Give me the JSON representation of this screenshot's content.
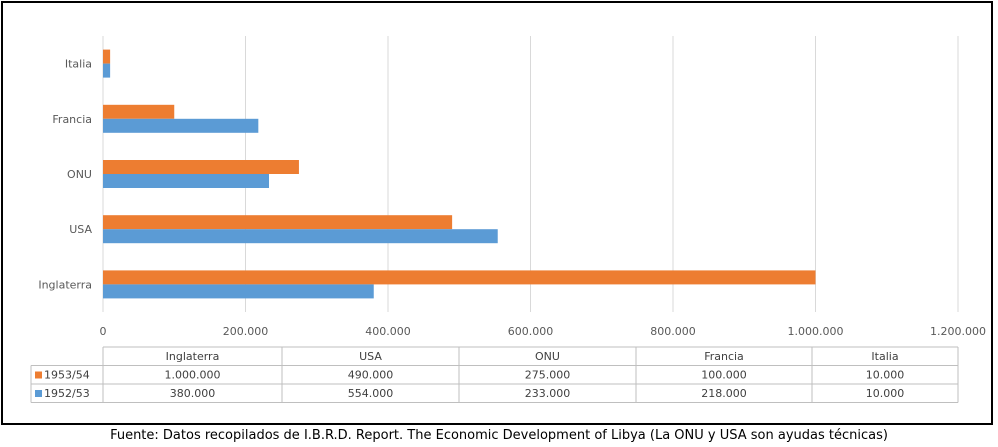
{
  "chart_data": {
    "type": "bar",
    "orientation": "horizontal",
    "categories": [
      "Inglaterra",
      "USA",
      "ONU",
      "Francia",
      "Italia"
    ],
    "series": [
      {
        "name": "1953/54",
        "color": "#ED7D31",
        "values": [
          1000000,
          490000,
          275000,
          100000,
          10000
        ],
        "labels": [
          "1.000.000",
          "490.000",
          "275.000",
          "100.000",
          "10.000"
        ]
      },
      {
        "name": "1952/53",
        "color": "#5B9BD5",
        "values": [
          380000,
          554000,
          233000,
          218000,
          10000
        ],
        "labels": [
          "380.000",
          "554.000",
          "233.000",
          "218.000",
          "10.000"
        ]
      }
    ],
    "xlim": [
      0,
      1200000
    ],
    "xticks": [
      0,
      200000,
      400000,
      600000,
      800000,
      1000000,
      1200000
    ],
    "xtick_labels": [
      "0",
      "200.000",
      "400.000",
      "600.000",
      "800.000",
      "1.000.000",
      "1.200.000"
    ],
    "grid": true,
    "data_table": true,
    "legend": "in data table"
  },
  "source_note": "Fuente: Datos recopilados de I.B.R.D. Report. The Economic Development of Libya (La ONU y USA son ayudas técnicas)"
}
